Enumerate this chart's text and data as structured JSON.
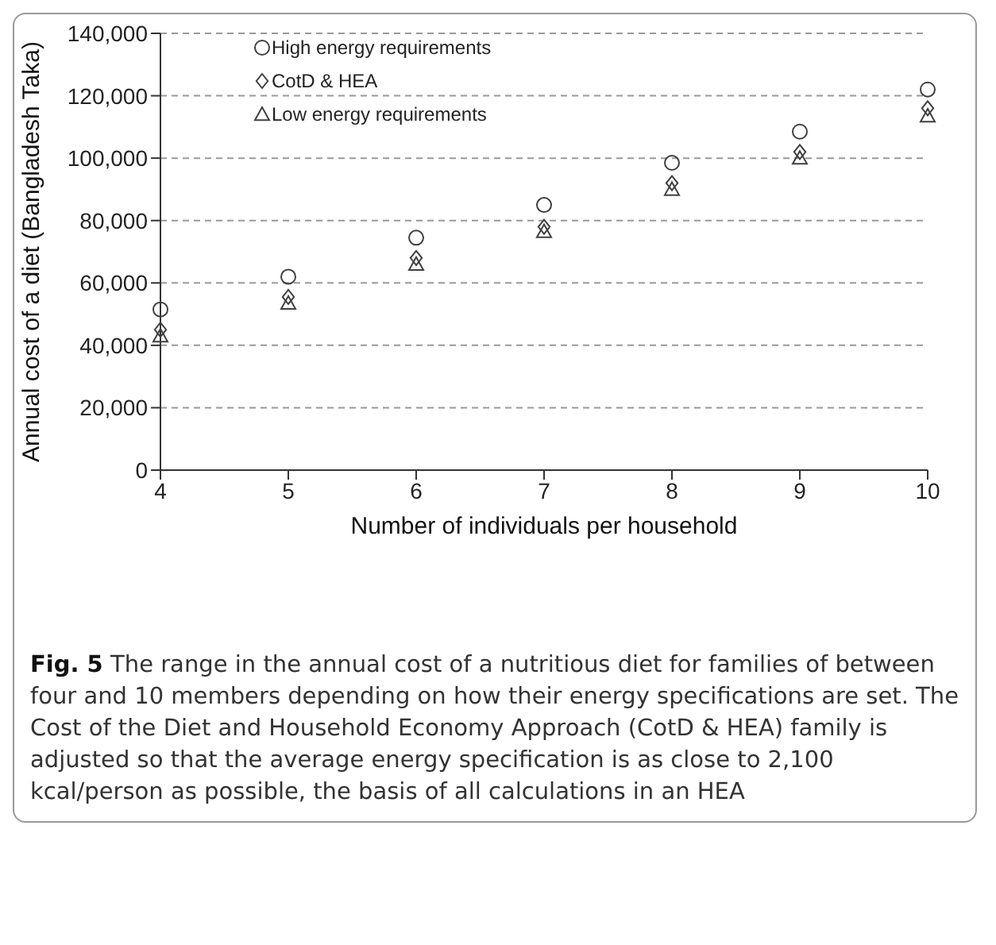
{
  "chart_data": {
    "type": "scatter",
    "xlabel": "Number of individuals per household",
    "ylabel": "Annual cost of a diet (Bangladesh Taka)",
    "x": [
      4,
      5,
      6,
      7,
      8,
      9,
      10
    ],
    "series": [
      {
        "name": "High energy requirements",
        "color": "#404040",
        "marker": "circle",
        "values": [
          51500,
          62000,
          74500,
          85000,
          98500,
          108500,
          122000
        ]
      },
      {
        "name": "CotD & HEA",
        "color": "#404040",
        "marker": "diamond",
        "values": [
          45000,
          55500,
          68000,
          78000,
          92000,
          102000,
          116000
        ]
      },
      {
        "name": "Low energy requirements",
        "color": "#404040",
        "marker": "triangle",
        "values": [
          43000,
          53500,
          66000,
          76500,
          90000,
          100000,
          113500
        ]
      }
    ],
    "xlim": [
      4,
      10
    ],
    "xticks": [
      4,
      5,
      6,
      7,
      8,
      9,
      10
    ],
    "ylim": [
      0,
      140000
    ],
    "yticks": [
      0,
      {
        "value": 20000,
        "label": "20,000"
      },
      {
        "value": 40000,
        "label": "40,000"
      },
      {
        "value": 60000,
        "label": "60,000"
      },
      {
        "value": 80000,
        "label": "80,000"
      },
      {
        "value": 100000,
        "label": "100,000"
      },
      {
        "value": 120000,
        "label": "120,000"
      },
      {
        "value": 140000,
        "label": "140,000"
      }
    ],
    "grid": "y",
    "legend": "top left",
    "annotations": [
      "Fig. 5 The range in the annual cost of a nutritious diet for families of between four and 10 members depending on how their energy specifications are set. The Cost of the Diet and Household Economy Approach (CotD & HEA) family is adjusted so that the average energy specification is as close to 2,100 kcal/person as possible, the basis of all calculations in an HEA"
    ]
  }
}
